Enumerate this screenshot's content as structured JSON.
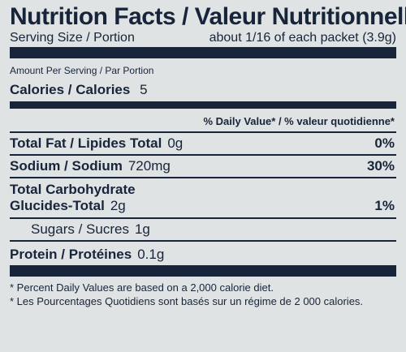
{
  "title": "Nutrition Facts / Valeur Nutritionnelle",
  "serving": {
    "label": "Serving Size / Portion",
    "value": "about 1/16 of each packet (3.9g)"
  },
  "amount_per_serving": "Amount Per Serving / Par Portion",
  "calories": {
    "label": "Calories / Calories",
    "value": "5"
  },
  "daily_value_header": "% Daily Value* / % valeur quotidienne*",
  "nutrients": {
    "fat": {
      "label": "Total Fat / Lipides Total",
      "amount": "0g",
      "percent": "0%"
    },
    "sodium": {
      "label": "Sodium / Sodium",
      "amount": "720mg",
      "percent": "30%"
    },
    "carbohydrate": {
      "label_line1": "Total Carbohydrate",
      "label_line2": "Glucides-Total",
      "amount": "2g",
      "percent": "1%"
    },
    "sugars": {
      "label": "Sugars / Sucres",
      "amount": "1g"
    },
    "protein": {
      "label": "Protein / Protéines",
      "amount": "0.1g"
    }
  },
  "footnotes": [
    "* Percent Daily Values are based on a 2,000 calorie diet.",
    "* Les Pourcentages Quotidiens sont basés sur un régime de 2 000 calories."
  ],
  "colors": {
    "ink": "#17243a",
    "background": "#dfe3e4"
  }
}
